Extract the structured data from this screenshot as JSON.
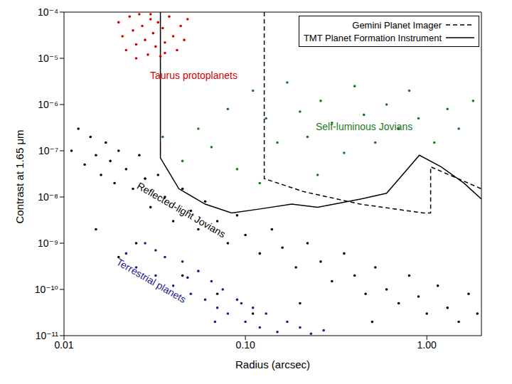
{
  "chart_data": {
    "type": "scatter",
    "xlabel": "Radius (arcsec)",
    "ylabel": "Contrast at 1.65 μm",
    "log": true,
    "legend": "upper right",
    "xlim": [
      0.01,
      2.0
    ],
    "ylim": [
      1e-11,
      0.0001
    ],
    "xticks": [
      0.01,
      {
        "value": 0.1,
        "label": "0.10"
      },
      {
        "value": 1,
        "label": "1.00"
      }
    ],
    "yticks": [
      {
        "value": 1e-11,
        "label": "10⁻¹¹"
      },
      {
        "value": 1e-10,
        "label": "10⁻¹⁰"
      },
      {
        "value": 1e-09,
        "label": "10⁻⁹"
      },
      {
        "value": 1e-08,
        "label": "10⁻⁸"
      },
      {
        "value": 1e-07,
        "label": "10⁻⁷"
      },
      {
        "value": 1e-06,
        "label": "10⁻⁶"
      },
      {
        "value": 1e-05,
        "label": "10⁻⁵"
      },
      {
        "value": 0.0001,
        "label": "10⁻⁴"
      }
    ],
    "series": [
      {
        "name": "Gemini Planet Imager",
        "type": "line",
        "line_style": "dashed",
        "color": "#000000",
        "x": [
          0.127,
          0.127,
          0.21,
          0.43,
          0.96,
          1.05,
          1.05,
          2.0
        ],
        "values": [
          0.0001,
          2.5e-08,
          1.3e-08,
          7e-09,
          4.5e-09,
          4.5e-09,
          4.5e-08,
          1.5e-08
        ]
      },
      {
        "name": "TMT Planet Formation Instrument",
        "type": "line",
        "line_style": "solid",
        "color": "#000000",
        "x": [
          0.034,
          0.034,
          0.043,
          0.06,
          0.084,
          0.12,
          0.18,
          0.25,
          0.43,
          0.6,
          0.91,
          1.2,
          1.6,
          2.0
        ],
        "values": [
          0.0001,
          7e-08,
          1.5e-08,
          7e-09,
          4.5e-09,
          5.5e-09,
          7e-09,
          6e-09,
          9e-09,
          1.2e-08,
          8e-08,
          4.5e-08,
          2e-08,
          9e-09
        ]
      },
      {
        "name": "Taurus protoplanets",
        "type": "scatter",
        "marker": "circle",
        "color": "#d40000",
        "x": [
          0.02,
          0.021,
          0.022,
          0.023,
          0.024,
          0.025,
          0.026,
          0.027,
          0.028,
          0.029,
          0.03,
          0.031,
          0.032,
          0.033,
          0.034,
          0.035,
          0.036,
          0.038,
          0.04,
          0.042,
          0.044,
          0.046,
          0.048,
          0.036,
          0.025,
          0.03
        ],
        "values": [
          6e-05,
          3e-05,
          1.5e-05,
          8e-05,
          4e-05,
          2e-05,
          9e-05,
          5e-05,
          2.5e-05,
          1.2e-05,
          7e-05,
          3.5e-05,
          1.8e-05,
          6e-05,
          1.1e-05,
          4.5e-05,
          2.2e-05,
          8e-05,
          3e-05,
          1.5e-05,
          5e-05,
          2.5e-05,
          7e-05,
          1.3e-05,
          1e-05,
          9e-05
        ]
      },
      {
        "name": "Self-luminous Jovians",
        "type": "scatter",
        "marker": "circle",
        "color": "#1a7a1a",
        "x": [
          0.035,
          0.045,
          0.055,
          0.065,
          0.08,
          0.09,
          0.11,
          0.13,
          0.15,
          0.17,
          0.2,
          0.22,
          0.26,
          0.3,
          0.35,
          0.4,
          0.45,
          0.52,
          0.6,
          0.7,
          0.8,
          0.9,
          1.1,
          1.3,
          1.5,
          1.8,
          0.25,
          0.12
        ],
        "values": [
          2e-07,
          6e-08,
          3e-07,
          1.2e-07,
          8e-07,
          4e-08,
          2e-06,
          5e-07,
          1.5e-07,
          3e-06,
          7e-07,
          2e-07,
          1.2e-06,
          4e-07,
          9e-08,
          2.5e-06,
          6e-07,
          1.5e-07,
          1e-06,
          3e-07,
          2e-06,
          5e-07,
          1.5e-07,
          8e-07,
          3e-07,
          1.2e-06,
          3e-08,
          2e-08
        ]
      },
      {
        "name": "Reflected-light Jovians",
        "type": "scatter",
        "marker": "circle",
        "color": "#000000",
        "x": [
          0.011,
          0.012,
          0.013,
          0.014,
          0.015,
          0.016,
          0.017,
          0.018,
          0.019,
          0.02,
          0.022,
          0.024,
          0.026,
          0.028,
          0.03,
          0.033,
          0.036,
          0.04,
          0.045,
          0.05,
          0.055,
          0.06,
          0.07,
          0.08,
          0.09,
          0.1,
          0.12,
          0.14,
          0.16,
          0.19,
          0.22,
          0.26,
          0.3,
          0.35,
          0.4,
          0.46,
          0.52,
          0.6,
          0.7,
          0.8,
          0.9,
          1.0,
          1.15,
          1.3,
          1.5,
          1.7,
          1.9,
          0.015,
          0.02,
          0.025,
          0.045,
          0.07,
          0.11,
          0.2,
          0.5
        ],
        "values": [
          1e-07,
          3e-07,
          5e-08,
          2e-07,
          8e-08,
          3e-08,
          1.5e-07,
          6e-08,
          2e-08,
          1e-07,
          4e-08,
          1.5e-08,
          8e-08,
          2.5e-08,
          6e-09,
          3e-08,
          1e-08,
          3e-09,
          1.5e-08,
          5e-09,
          2e-09,
          8e-09,
          3e-09,
          1e-09,
          4e-09,
          1.5e-09,
          6e-10,
          2e-09,
          8e-10,
          3e-10,
          1e-09,
          4e-10,
          1.5e-10,
          6e-10,
          2e-10,
          8e-11,
          3e-10,
          1e-10,
          5e-11,
          2e-10,
          7e-11,
          3e-11,
          1.2e-10,
          4e-11,
          2e-11,
          8e-11,
          3e-11,
          2e-09,
          5e-10,
          1e-09,
          2e-10,
          8e-11,
          3e-11,
          5e-11,
          2e-11
        ]
      },
      {
        "name": "Terrestrial planets",
        "type": "scatter",
        "marker": "circle",
        "color": "#1a1a8c",
        "x": [
          0.022,
          0.025,
          0.028,
          0.032,
          0.036,
          0.04,
          0.045,
          0.05,
          0.055,
          0.06,
          0.065,
          0.07,
          0.075,
          0.08,
          0.09,
          0.1,
          0.11,
          0.12,
          0.13,
          0.15,
          0.17,
          0.2,
          0.23,
          0.27,
          0.032,
          0.048,
          0.068,
          0.095
        ],
        "values": [
          6e-10,
          3e-10,
          1e-09,
          2e-10,
          5e-10,
          1.2e-10,
          4e-10,
          8e-11,
          2.5e-10,
          6e-11,
          1.5e-10,
          4e-11,
          1e-10,
          3e-11,
          6e-11,
          2e-11,
          4e-11,
          1.5e-11,
          3e-11,
          1.2e-11,
          2e-11,
          1.5e-11,
          1.1e-11,
          1.3e-11,
          7e-10,
          1.8e-10,
          2e-11,
          5e-11
        ]
      }
    ]
  }
}
